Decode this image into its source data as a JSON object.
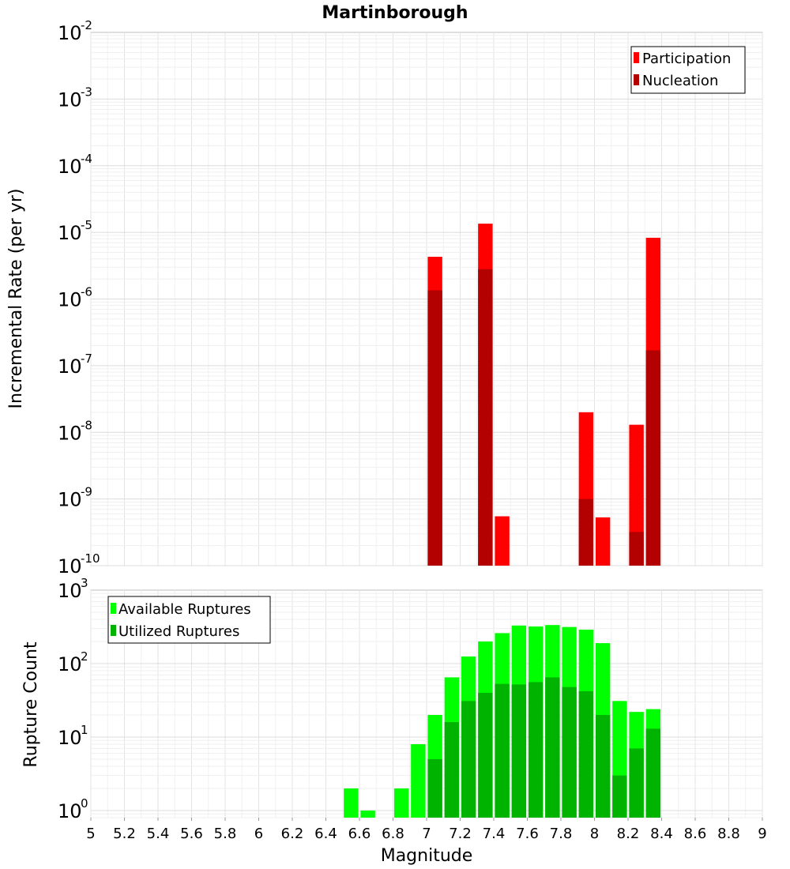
{
  "chart_data": [
    {
      "type": "bar",
      "title": "Martinborough",
      "xlabel": "",
      "ylabel": "Incremental Rate (per yr)",
      "yscale": "log",
      "xlim": [
        5,
        9
      ],
      "ylim": [
        1e-10,
        0.01
      ],
      "y_ticks": [
        {
          "base": "10",
          "exp": "-2"
        },
        {
          "base": "10",
          "exp": "-3"
        },
        {
          "base": "10",
          "exp": "-4"
        },
        {
          "base": "10",
          "exp": "-5"
        },
        {
          "base": "10",
          "exp": "-6"
        },
        {
          "base": "10",
          "exp": "-7"
        },
        {
          "base": "10",
          "exp": "-8"
        },
        {
          "base": "10",
          "exp": "-9"
        },
        {
          "base": "10",
          "exp": "-10"
        }
      ],
      "grid": true,
      "legend_position": "top-right",
      "series": [
        {
          "name": "Participation",
          "color": "#ff0000",
          "points": [
            {
              "x": 7.05,
              "y": 4.3e-06
            },
            {
              "x": 7.35,
              "y": 1.35e-05
            },
            {
              "x": 7.45,
              "y": 5.5e-10
            },
            {
              "x": 7.95,
              "y": 2e-08
            },
            {
              "x": 8.05,
              "y": 5.3e-10
            },
            {
              "x": 8.25,
              "y": 1.3e-08
            },
            {
              "x": 8.35,
              "y": 8.3e-06
            }
          ]
        },
        {
          "name": "Nucleation",
          "color": "#b30000",
          "points": [
            {
              "x": 7.05,
              "y": 1.35e-06
            },
            {
              "x": 7.35,
              "y": 2.8e-06
            },
            {
              "x": 7.95,
              "y": 1e-09
            },
            {
              "x": 8.25,
              "y": 3.2e-10
            },
            {
              "x": 8.35,
              "y": 1.7e-07
            }
          ]
        }
      ]
    },
    {
      "type": "bar",
      "title": "",
      "xlabel": "Magnitude",
      "ylabel": "Rupture Count",
      "yscale": "log",
      "xlim": [
        5,
        9
      ],
      "ylim": [
        0.8,
        1000
      ],
      "x_ticks": [
        "5",
        "5.2",
        "5.4",
        "5.6",
        "5.8",
        "6",
        "6.2",
        "6.4",
        "6.6",
        "6.8",
        "7",
        "7.2",
        "7.4",
        "7.6",
        "7.8",
        "8",
        "8.2",
        "8.4",
        "8.6",
        "8.8",
        "9"
      ],
      "y_ticks": [
        {
          "base": "10",
          "exp": "3"
        },
        {
          "base": "10",
          "exp": "2"
        },
        {
          "base": "10",
          "exp": "1"
        },
        {
          "base": "10",
          "exp": "0"
        }
      ],
      "grid": true,
      "legend_position": "top-left",
      "series": [
        {
          "name": "Available Ruptures",
          "color": "#00ff00",
          "points": [
            {
              "x": 6.55,
              "y": 2
            },
            {
              "x": 6.65,
              "y": 1
            },
            {
              "x": 6.85,
              "y": 2
            },
            {
              "x": 6.95,
              "y": 8
            },
            {
              "x": 7.05,
              "y": 20
            },
            {
              "x": 7.15,
              "y": 65
            },
            {
              "x": 7.25,
              "y": 125
            },
            {
              "x": 7.35,
              "y": 200
            },
            {
              "x": 7.45,
              "y": 260
            },
            {
              "x": 7.55,
              "y": 330
            },
            {
              "x": 7.65,
              "y": 320
            },
            {
              "x": 7.75,
              "y": 335
            },
            {
              "x": 7.85,
              "y": 315
            },
            {
              "x": 7.95,
              "y": 290
            },
            {
              "x": 8.05,
              "y": 190
            },
            {
              "x": 8.15,
              "y": 31
            },
            {
              "x": 8.25,
              "y": 22
            },
            {
              "x": 8.35,
              "y": 24
            }
          ]
        },
        {
          "name": "Utilized Ruptures",
          "color": "#00b300",
          "points": [
            {
              "x": 7.05,
              "y": 5
            },
            {
              "x": 7.15,
              "y": 16
            },
            {
              "x": 7.25,
              "y": 31
            },
            {
              "x": 7.35,
              "y": 40
            },
            {
              "x": 7.45,
              "y": 53
            },
            {
              "x": 7.55,
              "y": 52
            },
            {
              "x": 7.65,
              "y": 56
            },
            {
              "x": 7.75,
              "y": 65
            },
            {
              "x": 7.85,
              "y": 48
            },
            {
              "x": 7.95,
              "y": 42
            },
            {
              "x": 8.05,
              "y": 20
            },
            {
              "x": 8.15,
              "y": 3
            },
            {
              "x": 8.25,
              "y": 7
            },
            {
              "x": 8.35,
              "y": 13
            }
          ]
        }
      ]
    }
  ]
}
